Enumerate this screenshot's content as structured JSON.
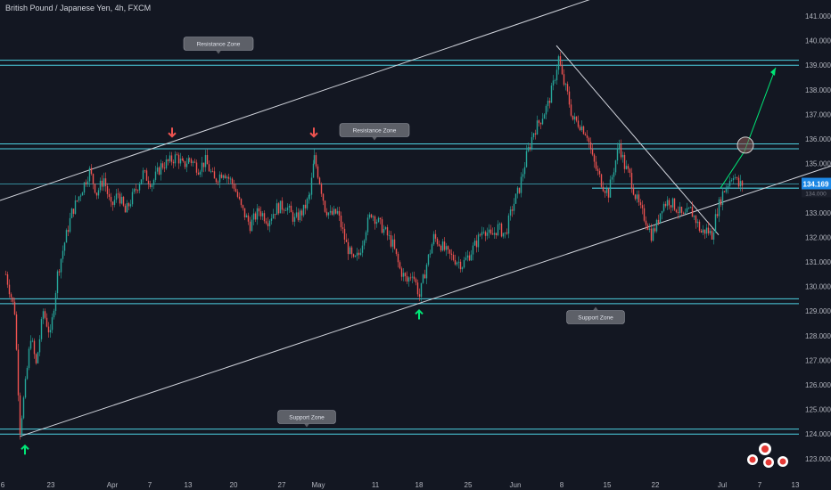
{
  "header": {
    "title": "British Pound / Japanese Yen, 4h, FXCM"
  },
  "price_tag": {
    "value": "134.169",
    "sub": "134.000"
  },
  "colors": {
    "background": "#131722",
    "up": "#26a69a",
    "down": "#ef5350",
    "zone_line": "#4dd0e1",
    "trendline": "#d1d4dc",
    "projection": "#00e676",
    "text": "#b2b5be",
    "price_tag": "#1e88e5"
  },
  "annotations": {
    "resistance_top": "Resistance Zone",
    "resistance_mid": "Resistance Zone",
    "support_mid": "Support Zone",
    "support_bottom": "Support Zone"
  },
  "chart_data": {
    "type": "candlestick",
    "title": "British Pound / Japanese Yen, 4h, FXCM",
    "ylim": [
      122.5,
      141.5
    ],
    "y_ticks": [
      "141.000",
      "140.000",
      "139.000",
      "138.000",
      "137.000",
      "136.000",
      "135.000",
      "133.000",
      "132.000",
      "131.000",
      "130.000",
      "129.000",
      "128.000",
      "127.000",
      "126.000",
      "125.000",
      "124.000",
      "123.000"
    ],
    "x_ticks": [
      "6",
      "23",
      "Apr",
      "7",
      "13",
      "20",
      "27",
      "May",
      "11",
      "18",
      "25",
      "Jun",
      "8",
      "15",
      "22",
      "Jul",
      "7",
      "13"
    ],
    "last_price": 134.169,
    "zones": [
      {
        "label": "Resistance Zone",
        "low": 139.0,
        "high": 139.2
      },
      {
        "label": "Resistance Zone",
        "low": 135.6,
        "high": 135.8
      },
      {
        "label": "Support Zone",
        "low": 129.3,
        "high": 129.5
      },
      {
        "label": "Support Zone",
        "low": 124.0,
        "high": 124.2
      }
    ],
    "support_level_line": 134.0,
    "path": [
      [
        6,
        130.5
      ],
      [
        16,
        129.0
      ],
      [
        22,
        124.2
      ],
      [
        28,
        126.0
      ],
      [
        34,
        128.0
      ],
      [
        40,
        126.8
      ],
      [
        48,
        129.0
      ],
      [
        56,
        128.0
      ],
      [
        64,
        130.5
      ],
      [
        72,
        131.8
      ],
      [
        80,
        133.0
      ],
      [
        86,
        133.5
      ],
      [
        92,
        134.0
      ],
      [
        100,
        134.7
      ],
      [
        108,
        133.8
      ],
      [
        116,
        134.4
      ],
      [
        124,
        133.2
      ],
      [
        132,
        133.8
      ],
      [
        140,
        133.0
      ],
      [
        150,
        133.8
      ],
      [
        160,
        134.6
      ],
      [
        170,
        134.2
      ],
      [
        180,
        134.9
      ],
      [
        190,
        135.1
      ],
      [
        198,
        135.3
      ],
      [
        205,
        134.9
      ],
      [
        212,
        135.2
      ],
      [
        222,
        134.8
      ],
      [
        230,
        135.1
      ],
      [
        240,
        134.3
      ],
      [
        250,
        134.7
      ],
      [
        262,
        134.1
      ],
      [
        270,
        133.2
      ],
      [
        280,
        132.5
      ],
      [
        290,
        133.1
      ],
      [
        300,
        132.7
      ],
      [
        310,
        133.2
      ],
      [
        320,
        133.3
      ],
      [
        330,
        132.7
      ],
      [
        340,
        133.1
      ],
      [
        347,
        133.7
      ],
      [
        352,
        135.2
      ],
      [
        358,
        134.3
      ],
      [
        364,
        133.2
      ],
      [
        370,
        132.9
      ],
      [
        378,
        133.0
      ],
      [
        388,
        131.7
      ],
      [
        396,
        131.0
      ],
      [
        402,
        131.3
      ],
      [
        410,
        132.4
      ],
      [
        416,
        133.0
      ],
      [
        424,
        132.6
      ],
      [
        432,
        132.2
      ],
      [
        440,
        131.7
      ],
      [
        448,
        130.7
      ],
      [
        456,
        130.2
      ],
      [
        462,
        130.6
      ],
      [
        470,
        129.6
      ],
      [
        478,
        130.9
      ],
      [
        486,
        132.0
      ],
      [
        494,
        131.7
      ],
      [
        502,
        131.3
      ],
      [
        510,
        131.1
      ],
      [
        518,
        130.9
      ],
      [
        526,
        131.3
      ],
      [
        534,
        131.8
      ],
      [
        542,
        132.4
      ],
      [
        550,
        132.0
      ],
      [
        558,
        132.4
      ],
      [
        566,
        132.1
      ],
      [
        574,
        133.2
      ],
      [
        582,
        134.0
      ],
      [
        590,
        135.3
      ],
      [
        598,
        136.3
      ],
      [
        606,
        136.8
      ],
      [
        614,
        137.4
      ],
      [
        620,
        138.2
      ],
      [
        626,
        139.3
      ],
      [
        630,
        138.5
      ],
      [
        636,
        137.8
      ],
      [
        642,
        136.8
      ],
      [
        650,
        136.6
      ],
      [
        658,
        136.2
      ],
      [
        664,
        135.2
      ],
      [
        670,
        134.6
      ],
      [
        676,
        134.1
      ],
      [
        682,
        133.8
      ],
      [
        688,
        134.8
      ],
      [
        694,
        135.8
      ],
      [
        700,
        134.9
      ],
      [
        706,
        134.5
      ],
      [
        712,
        133.7
      ],
      [
        718,
        133.1
      ],
      [
        724,
        132.7
      ],
      [
        730,
        132.1
      ],
      [
        736,
        132.5
      ],
      [
        742,
        133.3
      ],
      [
        750,
        133.5
      ],
      [
        758,
        133.2
      ],
      [
        766,
        132.8
      ],
      [
        774,
        133.1
      ],
      [
        780,
        132.7
      ],
      [
        786,
        132.2
      ],
      [
        792,
        132.3
      ],
      [
        798,
        132.1
      ],
      [
        804,
        133.1
      ],
      [
        810,
        133.8
      ],
      [
        816,
        134.2
      ],
      [
        822,
        134.6
      ],
      [
        828,
        134.1
      ],
      [
        834,
        134.2
      ]
    ],
    "trendlines": [
      {
        "from": [
          0,
          133.5
        ],
        "to": [
          672,
          141.8
        ]
      },
      {
        "from": [
          22,
          123.9
        ],
        "to": [
          932,
          134.9
        ]
      },
      {
        "from": [
          624,
          139.8
        ],
        "to": [
          806,
          132.1
        ]
      }
    ],
    "projection": {
      "from": [
        808,
        134.0
      ],
      "via": [
        835,
        135.5
      ],
      "to": [
        870,
        138.9
      ]
    },
    "markers": {
      "down_arrows": [
        [
          193,
          136.1
        ],
        [
          352,
          136.1
        ]
      ],
      "up_arrows": [
        [
          28,
          123.6
        ],
        [
          470,
          129.1
        ]
      ]
    }
  }
}
